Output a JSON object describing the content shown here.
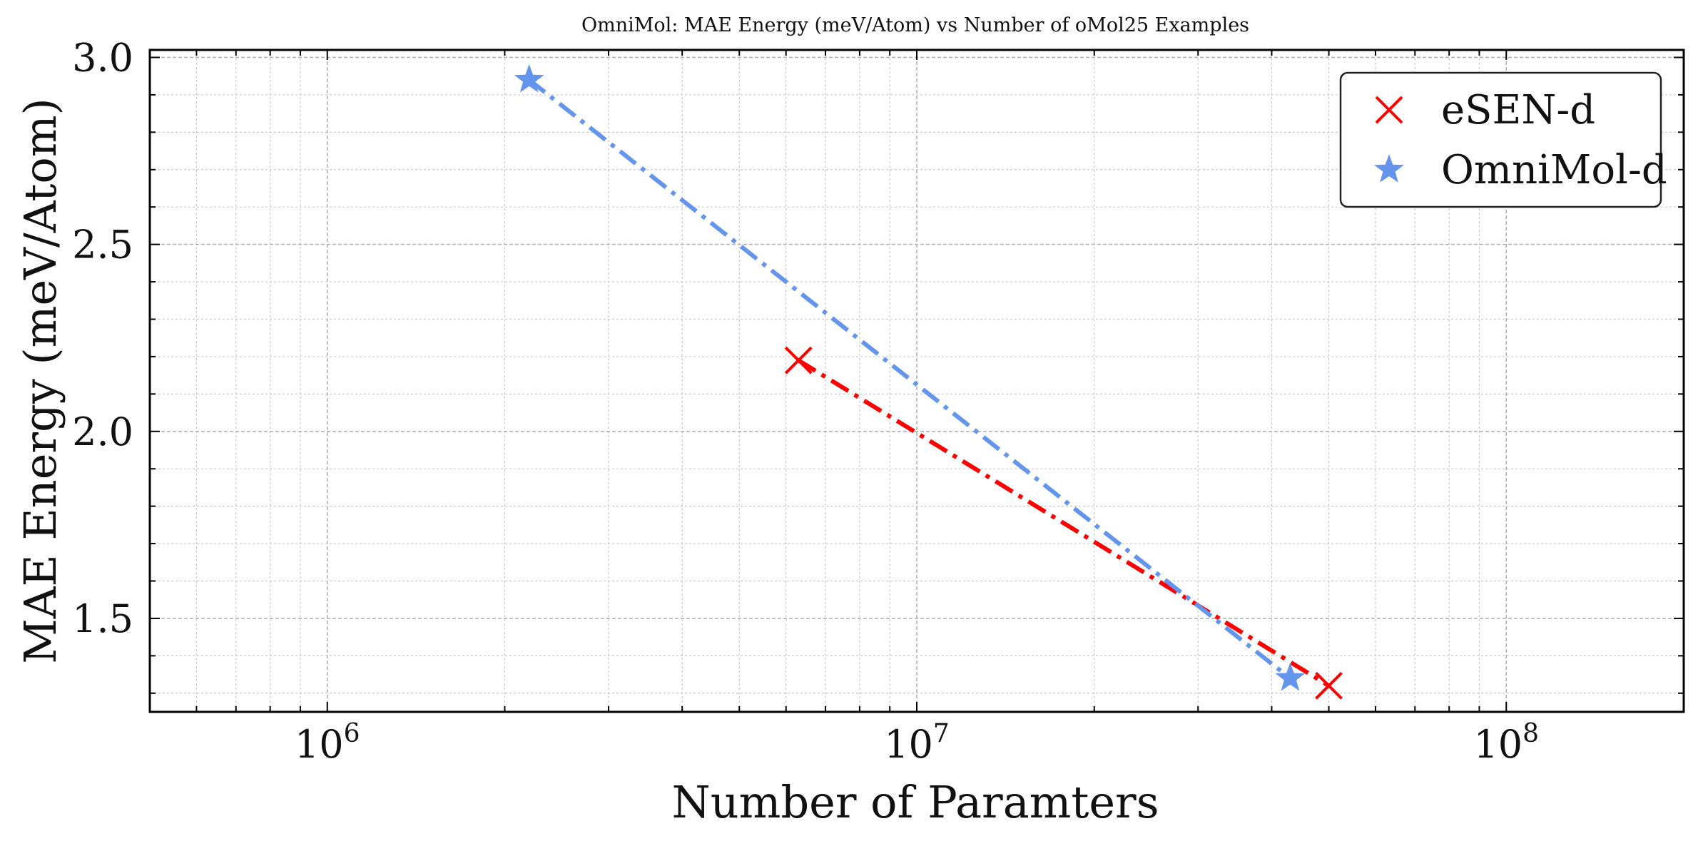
{
  "chart_data": {
    "type": "line",
    "title": "OmniMol: MAE Energy (meV/Atom) vs Number of oMol25 Examples",
    "xlabel": "Number of Paramters",
    "ylabel": "MAE Energy (meV/Atom)",
    "xscale": "log",
    "xlim": [
      500000,
      200000000
    ],
    "ylim": [
      1.25,
      3.02
    ],
    "x_ticks": [
      {
        "value": 1000000,
        "base": "10",
        "exp": "6"
      },
      {
        "value": 10000000,
        "base": "10",
        "exp": "7"
      },
      {
        "value": 100000000,
        "base": "10",
        "exp": "8"
      }
    ],
    "y_ticks": [
      {
        "value": 1.5,
        "label": "1.5"
      },
      {
        "value": 2.0,
        "label": "2.0"
      },
      {
        "value": 2.5,
        "label": "2.5"
      },
      {
        "value": 3.0,
        "label": "3.0"
      }
    ],
    "grid": true,
    "legend_position": "top-right",
    "series": [
      {
        "name": "eSEN-d",
        "marker": "x",
        "linestyle": "dashdot",
        "color": "#ff0000",
        "x": [
          6300000,
          50000000
        ],
        "y": [
          2.19,
          1.32
        ]
      },
      {
        "name": "OmniMol-d",
        "marker": "star",
        "linestyle": "dashdot",
        "color": "#6495ed",
        "x": [
          2200000,
          43000000
        ],
        "y": [
          2.94,
          1.34
        ]
      }
    ]
  }
}
